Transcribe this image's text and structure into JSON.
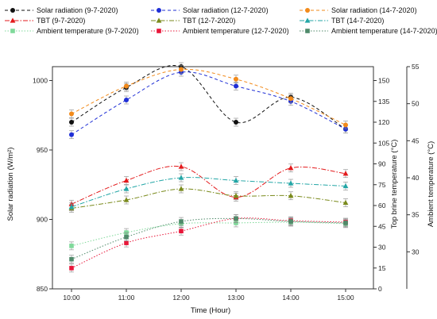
{
  "chart_data": {
    "type": "line",
    "categories": [
      "10:00",
      "11:00",
      "12:00",
      "13:00",
      "14:00",
      "15:00"
    ],
    "xlabel": "Time (Hour)",
    "axes": {
      "left": {
        "label": "Solar radiation (W/m²)",
        "range": [
          850,
          1010
        ],
        "ticks": [
          850,
          900,
          950,
          1000
        ]
      },
      "right1": {
        "label": "Top brine temperature (°C)",
        "range": [
          0,
          160
        ],
        "ticks": [
          0,
          15,
          30,
          45,
          60,
          75,
          90,
          105,
          120,
          135,
          150
        ]
      },
      "right2": {
        "label": "Ambient temperature (°C)",
        "range": [
          25,
          55
        ],
        "ticks": [
          30,
          35,
          40,
          45,
          50,
          55
        ]
      }
    },
    "legend_placement": "top",
    "series": [
      {
        "name": "Solar radiation (9-7-2020)",
        "axis": "left",
        "color": "#111111",
        "marker": "circle",
        "style": "dash",
        "values": [
          970,
          995,
          1010,
          970,
          988,
          965
        ]
      },
      {
        "name": "Solar radiation (12-7-2020)",
        "axis": "left",
        "color": "#1f2fd6",
        "marker": "circle",
        "style": "dash",
        "values": [
          961,
          986,
          1006,
          996,
          985,
          965
        ]
      },
      {
        "name": "Solar radiation (14-7-2020)",
        "axis": "left",
        "color": "#f28a1a",
        "marker": "circle",
        "style": "dash",
        "values": [
          976,
          996,
          1008,
          1001,
          987,
          968
        ]
      },
      {
        "name": "TBT (9-7-2020)",
        "axis": "right1",
        "color": "#e31a1c",
        "marker": "triangle",
        "style": "dashdot",
        "values": [
          61,
          78,
          88,
          66,
          87,
          83
        ]
      },
      {
        "name": "TBT (12-7-2020)",
        "axis": "right1",
        "color": "#7a8a1c",
        "marker": "triangle",
        "style": "dashdot",
        "values": [
          58,
          64,
          72,
          67,
          67,
          62
        ]
      },
      {
        "name": "TBT (14-7-2020)",
        "axis": "right1",
        "color": "#23a6a6",
        "marker": "triangle",
        "style": "dashdot",
        "values": [
          59,
          72,
          80,
          78,
          76,
          74
        ]
      },
      {
        "name": "Ambient temperature (9-7-2020)",
        "axis": "right2",
        "color": "#7fd99a",
        "marker": "square",
        "style": "dot",
        "values": [
          30.8,
          32.6,
          33.8,
          33.9,
          34.0,
          33.8
        ]
      },
      {
        "name": "Ambient temperature (12-7-2020)",
        "axis": "right2",
        "color": "#e8173a",
        "marker": "square",
        "style": "dot",
        "values": [
          27.8,
          31.2,
          32.8,
          34.5,
          34.2,
          34.0
        ]
      },
      {
        "name": "Ambient temperature (14-7-2020)",
        "axis": "right2",
        "color": "#4f8a6a",
        "marker": "square",
        "style": "dot",
        "values": [
          29.0,
          32.0,
          34.1,
          34.5,
          34.1,
          33.9
        ]
      }
    ]
  }
}
